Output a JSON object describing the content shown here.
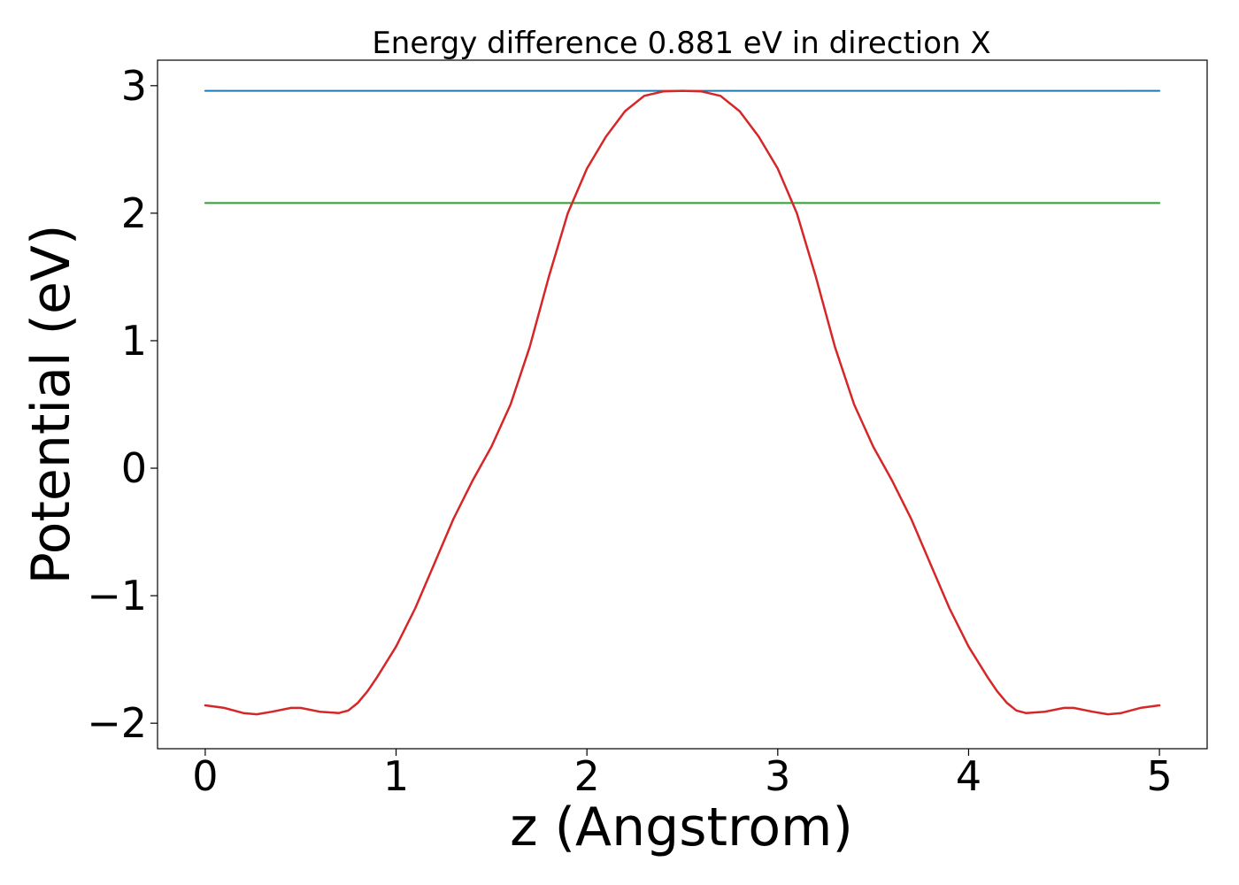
{
  "chart_data": {
    "type": "line",
    "title": "Energy difference 0.881 eV in direction X",
    "xlabel": "z (Angstrom)",
    "ylabel": "Potential (eV)",
    "xlim": [
      -0.25,
      5.25
    ],
    "ylim": [
      -2.2,
      3.2
    ],
    "x_ticks": [
      0,
      1,
      2,
      3,
      4,
      5
    ],
    "x_tick_labels": [
      "0",
      "1",
      "2",
      "3",
      "4",
      "5"
    ],
    "y_ticks": [
      -2,
      -1,
      0,
      1,
      2,
      3
    ],
    "y_tick_labels": [
      "−2",
      "−1",
      "0",
      "1",
      "2",
      "3"
    ],
    "grid": false,
    "legend": "none",
    "series": [
      {
        "color": "#1f77b4",
        "x": [
          0,
          5
        ],
        "y": [
          2.96,
          2.96
        ]
      },
      {
        "color": "#2ca02c",
        "x": [
          0,
          5
        ],
        "y": [
          2.08,
          2.08
        ]
      },
      {
        "color": "#d62728",
        "x": [
          0,
          0.1,
          0.2,
          0.27,
          0.35,
          0.45,
          0.5,
          0.6,
          0.7,
          0.75,
          0.8,
          0.85,
          0.9,
          1.0,
          1.1,
          1.2,
          1.3,
          1.4,
          1.5,
          1.6,
          1.7,
          1.8,
          1.9,
          2.0,
          2.1,
          2.2,
          2.3,
          2.4,
          2.5,
          2.6,
          2.7,
          2.8,
          2.9,
          3.0,
          3.1,
          3.2,
          3.3,
          3.4,
          3.5,
          3.6,
          3.7,
          3.8,
          3.9,
          4.0,
          4.1,
          4.15,
          4.2,
          4.25,
          4.3,
          4.4,
          4.5,
          4.55,
          4.65,
          4.73,
          4.8,
          4.9,
          5.0
        ],
        "y": [
          -1.86,
          -1.88,
          -1.92,
          -1.93,
          -1.91,
          -1.88,
          -1.88,
          -1.91,
          -1.92,
          -1.9,
          -1.84,
          -1.75,
          -1.64,
          -1.4,
          -1.1,
          -0.75,
          -0.4,
          -0.1,
          0.17,
          0.5,
          0.95,
          1.5,
          2.0,
          2.35,
          2.6,
          2.8,
          2.92,
          2.955,
          2.96,
          2.955,
          2.92,
          2.8,
          2.6,
          2.35,
          2.0,
          1.5,
          0.95,
          0.5,
          0.17,
          -0.1,
          -0.4,
          -0.75,
          -1.1,
          -1.4,
          -1.64,
          -1.75,
          -1.84,
          -1.9,
          -1.92,
          -1.91,
          -1.88,
          -1.88,
          -1.91,
          -1.93,
          -1.92,
          -1.88,
          -1.86
        ]
      }
    ]
  }
}
